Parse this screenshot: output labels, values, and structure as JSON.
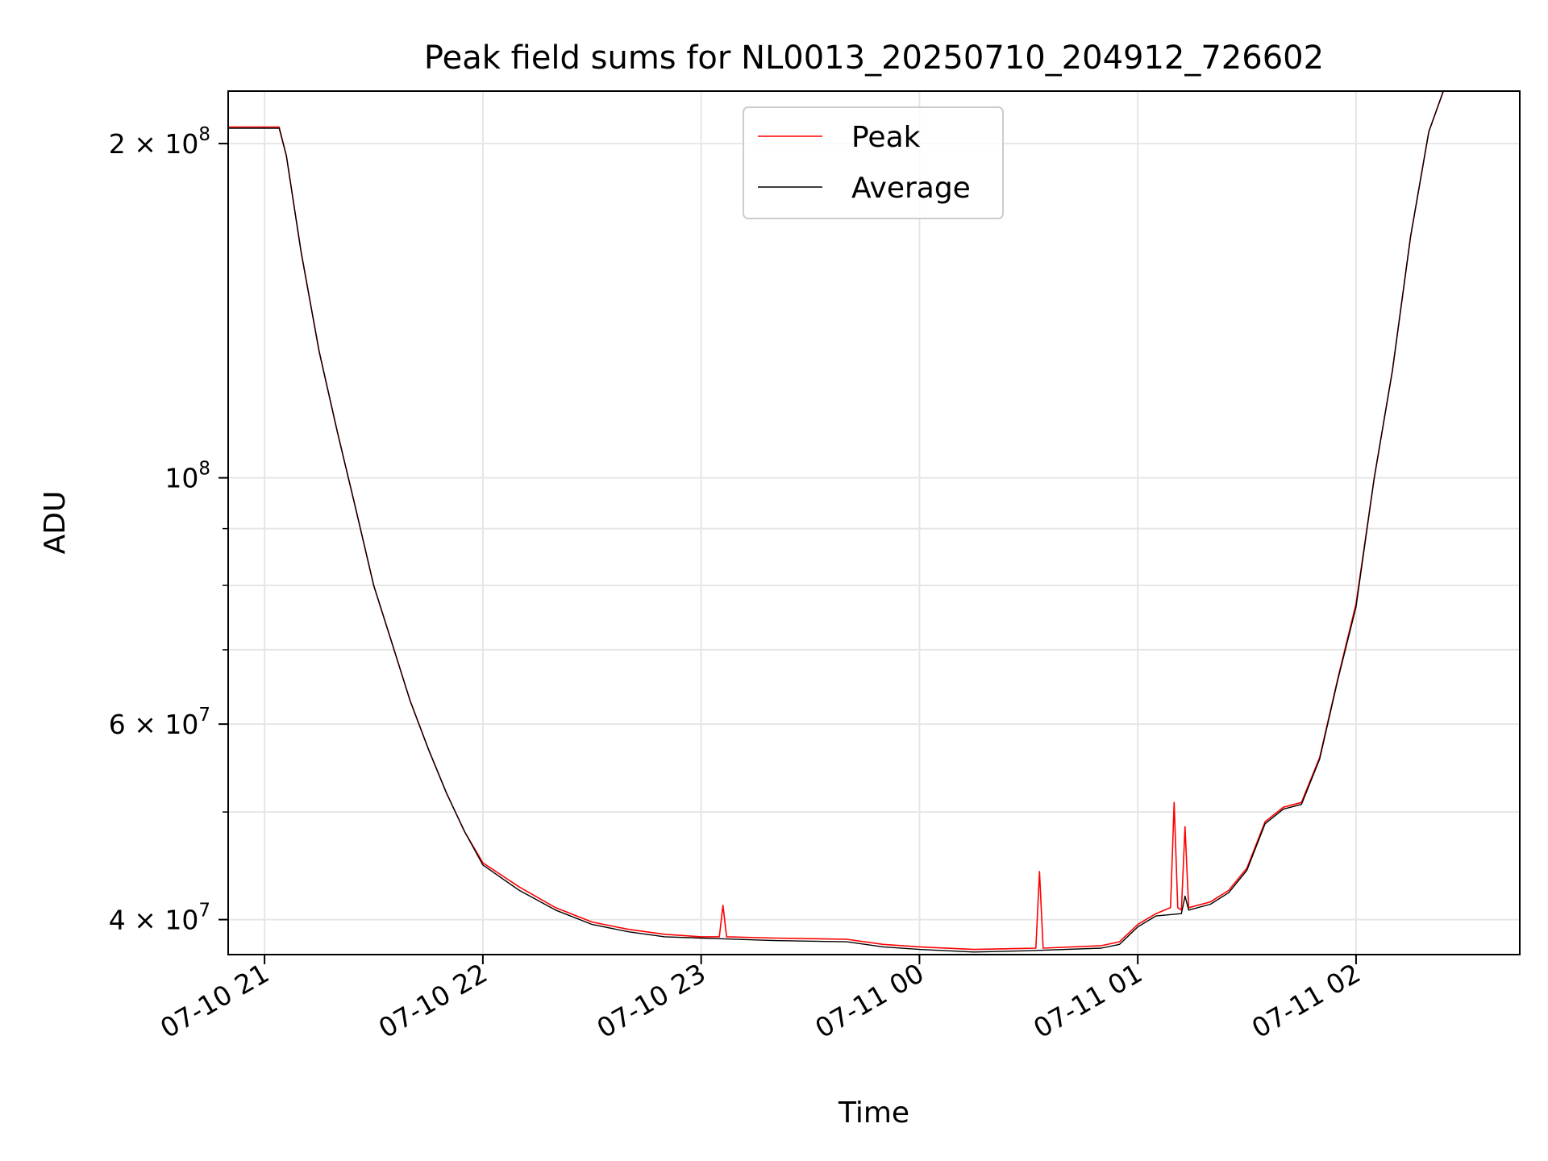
{
  "chart_data": {
    "type": "line",
    "title": "Peak field sums for NL0013_20250710_204912_726602",
    "xlabel": "Time",
    "ylabel": "ADU",
    "yscale": "log",
    "xlim": [
      "2025-07-10 20:50",
      "2025-07-11 02:45"
    ],
    "ylim": [
      37200000,
      223000000
    ],
    "x_ticks": [
      {
        "label": "07-10 21",
        "value": "2025-07-10 21:00"
      },
      {
        "label": "07-10 22",
        "value": "2025-07-10 22:00"
      },
      {
        "label": "07-10 23",
        "value": "2025-07-10 23:00"
      },
      {
        "label": "07-11 00",
        "value": "2025-07-11 00:00"
      },
      {
        "label": "07-11 01",
        "value": "2025-07-11 01:00"
      },
      {
        "label": "07-11 02",
        "value": "2025-07-11 02:00"
      }
    ],
    "y_ticks": [
      {
        "base": "4 × 10",
        "exp": "7",
        "value": 40000000
      },
      {
        "base": "6 × 10",
        "exp": "7",
        "value": 60000000
      },
      {
        "base": "10",
        "exp": "8",
        "value": 100000000
      },
      {
        "base": "2 × 10",
        "exp": "8",
        "value": 200000000
      }
    ],
    "y_minor_ticks": [
      50000000,
      70000000,
      80000000,
      90000000
    ],
    "grid": true,
    "legend_position": "top-center",
    "series": [
      {
        "name": "Peak",
        "color": "#ff0000",
        "points": [
          [
            "2025-07-10 20:50",
            207000000
          ],
          [
            "2025-07-10 21:04",
            207000000
          ],
          [
            "2025-07-10 21:06",
            195000000
          ],
          [
            "2025-07-10 21:10",
            160000000
          ],
          [
            "2025-07-10 21:15",
            130000000
          ],
          [
            "2025-07-10 21:20",
            110000000
          ],
          [
            "2025-07-10 21:25",
            94000000
          ],
          [
            "2025-07-10 21:30",
            80000000
          ],
          [
            "2025-07-10 21:35",
            71000000
          ],
          [
            "2025-07-10 21:40",
            63000000
          ],
          [
            "2025-07-10 21:45",
            57000000
          ],
          [
            "2025-07-10 21:50",
            52000000
          ],
          [
            "2025-07-10 21:55",
            48000000
          ],
          [
            "2025-07-10 22:00",
            45000000
          ],
          [
            "2025-07-10 22:10",
            42800000
          ],
          [
            "2025-07-10 22:20",
            41000000
          ],
          [
            "2025-07-10 22:30",
            39800000
          ],
          [
            "2025-07-10 22:40",
            39200000
          ],
          [
            "2025-07-10 22:50",
            38800000
          ],
          [
            "2025-07-10 23:00",
            38600000
          ],
          [
            "2025-07-10 23:05",
            38600000
          ],
          [
            "2025-07-10 23:06",
            41200000
          ],
          [
            "2025-07-10 23:07",
            38600000
          ],
          [
            "2025-07-10 23:20",
            38500000
          ],
          [
            "2025-07-10 23:40",
            38400000
          ],
          [
            "2025-07-10 23:50",
            38000000
          ],
          [
            "2025-07-11 00:00",
            37800000
          ],
          [
            "2025-07-11 00:15",
            37600000
          ],
          [
            "2025-07-11 00:32",
            37700000
          ],
          [
            "2025-07-11 00:33",
            44200000
          ],
          [
            "2025-07-11 00:34",
            37700000
          ],
          [
            "2025-07-11 00:50",
            37900000
          ],
          [
            "2025-07-11 00:55",
            38200000
          ],
          [
            "2025-07-11 01:00",
            39600000
          ],
          [
            "2025-07-11 01:05",
            40500000
          ],
          [
            "2025-07-11 01:09",
            41000000
          ],
          [
            "2025-07-11 01:10",
            51000000
          ],
          [
            "2025-07-11 01:11",
            41000000
          ],
          [
            "2025-07-11 01:12",
            40800000
          ],
          [
            "2025-07-11 01:13",
            48500000
          ],
          [
            "2025-07-11 01:14",
            41000000
          ],
          [
            "2025-07-11 01:20",
            41500000
          ],
          [
            "2025-07-11 01:25",
            42500000
          ],
          [
            "2025-07-11 01:30",
            44500000
          ],
          [
            "2025-07-11 01:35",
            49000000
          ],
          [
            "2025-07-11 01:40",
            50500000
          ],
          [
            "2025-07-11 01:45",
            51000000
          ],
          [
            "2025-07-11 01:50",
            56000000
          ],
          [
            "2025-07-11 01:55",
            66000000
          ],
          [
            "2025-07-11 02:00",
            77000000
          ],
          [
            "2025-07-11 02:05",
            100000000
          ],
          [
            "2025-07-11 02:10",
            125000000
          ],
          [
            "2025-07-11 02:15",
            165000000
          ],
          [
            "2025-07-11 02:20",
            205000000
          ],
          [
            "2025-07-11 02:24",
            223000000
          ]
        ]
      },
      {
        "name": "Average",
        "color": "#000000",
        "points": [
          [
            "2025-07-10 20:50",
            206500000
          ],
          [
            "2025-07-10 21:04",
            206500000
          ],
          [
            "2025-07-10 21:06",
            195000000
          ],
          [
            "2025-07-10 21:10",
            160000000
          ],
          [
            "2025-07-10 21:15",
            130000000
          ],
          [
            "2025-07-10 21:20",
            110000000
          ],
          [
            "2025-07-10 21:25",
            94000000
          ],
          [
            "2025-07-10 21:30",
            80000000
          ],
          [
            "2025-07-10 21:35",
            71000000
          ],
          [
            "2025-07-10 21:40",
            63000000
          ],
          [
            "2025-07-10 21:45",
            57000000
          ],
          [
            "2025-07-10 21:50",
            52000000
          ],
          [
            "2025-07-10 21:55",
            48000000
          ],
          [
            "2025-07-10 22:00",
            44800000
          ],
          [
            "2025-07-10 22:10",
            42500000
          ],
          [
            "2025-07-10 22:20",
            40800000
          ],
          [
            "2025-07-10 22:30",
            39600000
          ],
          [
            "2025-07-10 22:40",
            39000000
          ],
          [
            "2025-07-10 22:50",
            38600000
          ],
          [
            "2025-07-10 23:00",
            38500000
          ],
          [
            "2025-07-10 23:20",
            38300000
          ],
          [
            "2025-07-10 23:40",
            38200000
          ],
          [
            "2025-07-10 23:50",
            37800000
          ],
          [
            "2025-07-11 00:00",
            37600000
          ],
          [
            "2025-07-11 00:15",
            37400000
          ],
          [
            "2025-07-11 00:30",
            37500000
          ],
          [
            "2025-07-11 00:50",
            37700000
          ],
          [
            "2025-07-11 00:55",
            38000000
          ],
          [
            "2025-07-11 01:00",
            39400000
          ],
          [
            "2025-07-11 01:05",
            40300000
          ],
          [
            "2025-07-11 01:12",
            40500000
          ],
          [
            "2025-07-11 01:13",
            42000000
          ],
          [
            "2025-07-11 01:14",
            40800000
          ],
          [
            "2025-07-11 01:20",
            41300000
          ],
          [
            "2025-07-11 01:25",
            42300000
          ],
          [
            "2025-07-11 01:30",
            44300000
          ],
          [
            "2025-07-11 01:35",
            48800000
          ],
          [
            "2025-07-11 01:40",
            50300000
          ],
          [
            "2025-07-11 01:45",
            50800000
          ],
          [
            "2025-07-11 01:50",
            55800000
          ],
          [
            "2025-07-11 01:55",
            65800000
          ],
          [
            "2025-07-11 02:00",
            76500000
          ],
          [
            "2025-07-11 02:05",
            100000000
          ],
          [
            "2025-07-11 02:10",
            125000000
          ],
          [
            "2025-07-11 02:15",
            165000000
          ],
          [
            "2025-07-11 02:20",
            205000000
          ],
          [
            "2025-07-11 02:24",
            223000000
          ]
        ]
      }
    ]
  }
}
